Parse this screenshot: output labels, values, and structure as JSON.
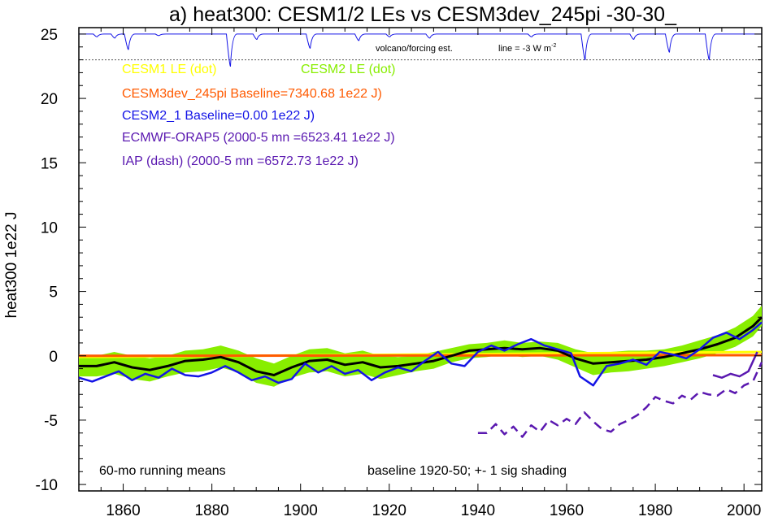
{
  "chart_data": {
    "type": "line",
    "title": "a) heat300: CESM1/2 LEs vs CESM3dev_245pi -30-30_",
    "ylabel": "heat300 1e22 J",
    "xlabel": "",
    "xlim": [
      1850,
      2004
    ],
    "ylim": [
      -10.5,
      25.5
    ],
    "x_ticks": [
      1860,
      1880,
      1900,
      1920,
      1940,
      1960,
      1980,
      2000
    ],
    "y_ticks": [
      -10,
      -5,
      0,
      5,
      10,
      15,
      20,
      25
    ],
    "grid": false,
    "legend": [
      {
        "text": "CESM1 LE (dot)",
        "color": "#ffff00"
      },
      {
        "text": "CESM2 LE (dot)",
        "color": "#88ee00"
      },
      {
        "text": "CESM3dev_245pi Baseline=7340.68 1e22 J)",
        "color": "#ff5a00"
      },
      {
        "text": "CESM2_1 Baseline=0.00 1e22 J)",
        "color": "#1414e6"
      },
      {
        "text": "ECMWF-ORAP5 (2000-5 mn =6523.41 1e22 J)",
        "color": "#5a18b0"
      },
      {
        "text": "IAP (dash) (2000-5 mn =6572.73 1e22 J)",
        "color": "#5a18b0"
      }
    ],
    "annotations": {
      "volcano_label": "volcano/forcing est.",
      "line_label": "line = -3 W m",
      "line_label_sup": "-2",
      "running_mean": "60-mo running means",
      "baseline_note": "baseline 1920-50; +- 1 sig shading"
    },
    "volcano_reference_y": 23,
    "volcano_series": {
      "baseline": 25,
      "events": [
        {
          "x": 1854,
          "y": 24.8
        },
        {
          "x": 1858,
          "y": 24.7
        },
        {
          "x": 1861,
          "y": 23.8
        },
        {
          "x": 1868,
          "y": 24.9
        },
        {
          "x": 1884,
          "y": 22.5
        },
        {
          "x": 1890,
          "y": 24.6
        },
        {
          "x": 1902,
          "y": 23.9
        },
        {
          "x": 1913,
          "y": 24.5
        },
        {
          "x": 1920,
          "y": 24.8
        },
        {
          "x": 1929,
          "y": 24.7
        },
        {
          "x": 1952,
          "y": 24.8
        },
        {
          "x": 1964,
          "y": 23.0
        },
        {
          "x": 1975,
          "y": 24.6
        },
        {
          "x": 1983,
          "y": 23.6
        },
        {
          "x": 1992,
          "y": 23.0
        }
      ]
    },
    "series": [
      {
        "name": "CESM2 LE (dot)",
        "color": "#88ee00",
        "kind": "band",
        "x": [
          1850,
          1854,
          1858,
          1862,
          1866,
          1870,
          1874,
          1878,
          1882,
          1886,
          1890,
          1894,
          1898,
          1902,
          1906,
          1910,
          1914,
          1918,
          1922,
          1926,
          1930,
          1934,
          1938,
          1942,
          1946,
          1950,
          1954,
          1958,
          1962,
          1966,
          1970,
          1974,
          1978,
          1982,
          1986,
          1990,
          1994,
          1998,
          2002,
          2004
        ],
        "upper": [
          0.0,
          0.0,
          0.3,
          0.0,
          -0.2,
          0.0,
          0.4,
          0.5,
          0.8,
          0.4,
          -0.2,
          -0.6,
          0.0,
          0.5,
          0.6,
          0.2,
          0.4,
          0.0,
          -0.1,
          0.0,
          0.3,
          0.6,
          0.9,
          1.0,
          1.2,
          1.0,
          1.1,
          1.0,
          0.5,
          0.2,
          0.3,
          0.4,
          0.4,
          0.5,
          0.8,
          1.2,
          1.6,
          2.2,
          3.1,
          3.9
        ],
        "lower": [
          -1.6,
          -1.6,
          -1.4,
          -1.8,
          -2.0,
          -1.6,
          -1.3,
          -1.2,
          -0.9,
          -1.3,
          -2.1,
          -2.4,
          -1.7,
          -1.3,
          -1.2,
          -1.6,
          -1.4,
          -1.8,
          -1.5,
          -1.2,
          -1.0,
          -0.5,
          -0.2,
          -0.1,
          0.1,
          -0.1,
          0.0,
          -0.3,
          -0.9,
          -1.5,
          -1.3,
          -1.2,
          -1.0,
          -0.8,
          -0.5,
          -0.2,
          0.2,
          0.7,
          1.5,
          2.3
        ]
      },
      {
        "name": "CESM1 LE (dot)",
        "color": "#ffff00",
        "x": [
          1850,
          2004
        ],
        "values": [
          -0.1,
          0.3
        ]
      },
      {
        "name": "CESM3dev_245pi",
        "color": "#ff5a00",
        "x": [
          1850,
          2004
        ],
        "values": [
          0.0,
          0.05
        ]
      },
      {
        "name": "CESM2 LE mean",
        "color": "#000000",
        "x": [
          1850,
          1854,
          1858,
          1862,
          1866,
          1870,
          1874,
          1878,
          1882,
          1886,
          1890,
          1894,
          1898,
          1902,
          1906,
          1910,
          1914,
          1918,
          1922,
          1926,
          1930,
          1934,
          1938,
          1942,
          1946,
          1950,
          1954,
          1958,
          1962,
          1966,
          1970,
          1974,
          1978,
          1982,
          1986,
          1990,
          1994,
          1998,
          2002,
          2004
        ],
        "values": [
          -0.8,
          -0.8,
          -0.5,
          -0.9,
          -1.1,
          -0.8,
          -0.4,
          -0.3,
          -0.1,
          -0.5,
          -1.2,
          -1.5,
          -0.9,
          -0.4,
          -0.3,
          -0.7,
          -0.5,
          -0.9,
          -0.8,
          -0.6,
          -0.4,
          0.0,
          0.4,
          0.5,
          0.6,
          0.5,
          0.6,
          0.4,
          -0.2,
          -0.6,
          -0.5,
          -0.4,
          -0.3,
          -0.1,
          0.2,
          0.5,
          0.9,
          1.4,
          2.3,
          3.0
        ]
      },
      {
        "name": "CESM2_1",
        "color": "#1414e6",
        "x": [
          1850,
          1853,
          1856,
          1859,
          1862,
          1865,
          1868,
          1871,
          1874,
          1877,
          1880,
          1883,
          1886,
          1889,
          1892,
          1895,
          1898,
          1901,
          1904,
          1907,
          1910,
          1913,
          1916,
          1919,
          1922,
          1925,
          1928,
          1931,
          1934,
          1937,
          1940,
          1943,
          1946,
          1949,
          1952,
          1955,
          1958,
          1961,
          1963,
          1966,
          1969,
          1972,
          1975,
          1978,
          1981,
          1984,
          1987,
          1990,
          1993,
          1996,
          1999,
          2002,
          2004
        ],
        "values": [
          -1.7,
          -2.0,
          -1.6,
          -1.2,
          -1.9,
          -1.4,
          -1.7,
          -1.0,
          -1.5,
          -1.6,
          -1.3,
          -0.8,
          -1.3,
          -1.9,
          -1.6,
          -2.1,
          -1.8,
          -0.6,
          -1.3,
          -0.8,
          -1.4,
          -1.1,
          -1.9,
          -1.3,
          -0.9,
          -1.2,
          -0.4,
          0.3,
          -0.6,
          -0.8,
          0.3,
          0.8,
          0.4,
          0.9,
          1.3,
          0.8,
          0.5,
          0.2,
          -1.6,
          -2.3,
          -0.8,
          -0.6,
          -0.3,
          -0.7,
          0.3,
          0.1,
          -0.2,
          0.5,
          1.4,
          1.8,
          1.3,
          2.0,
          2.6
        ]
      },
      {
        "name": "ECMWF-ORAP5",
        "color": "#5a18b0",
        "x": [
          1993,
          1995,
          1997,
          1999,
          2001,
          2003
        ],
        "values": [
          -1.5,
          -1.7,
          -1.4,
          -1.6,
          -1.2,
          0.3
        ]
      },
      {
        "name": "IAP (dash)",
        "color": "#5a18b0",
        "dash": true,
        "x": [
          1940,
          1942,
          1944,
          1946,
          1948,
          1950,
          1952,
          1954,
          1956,
          1958,
          1960,
          1962,
          1964,
          1966,
          1968,
          1970,
          1972,
          1974,
          1976,
          1978,
          1980,
          1982,
          1984,
          1986,
          1988,
          1990,
          1992,
          1994,
          1996,
          1998,
          2000,
          2002,
          2004
        ],
        "values": [
          -6.0,
          -6.0,
          -5.3,
          -6.1,
          -5.5,
          -6.3,
          -5.4,
          -5.9,
          -5.0,
          -5.4,
          -4.9,
          -5.3,
          -4.4,
          -5.1,
          -5.7,
          -5.9,
          -5.3,
          -5.0,
          -4.6,
          -4.0,
          -3.2,
          -3.5,
          -3.7,
          -3.1,
          -3.4,
          -2.8,
          -3.0,
          -3.1,
          -2.6,
          -2.9,
          -2.3,
          -2.0,
          -0.5
        ]
      }
    ]
  }
}
